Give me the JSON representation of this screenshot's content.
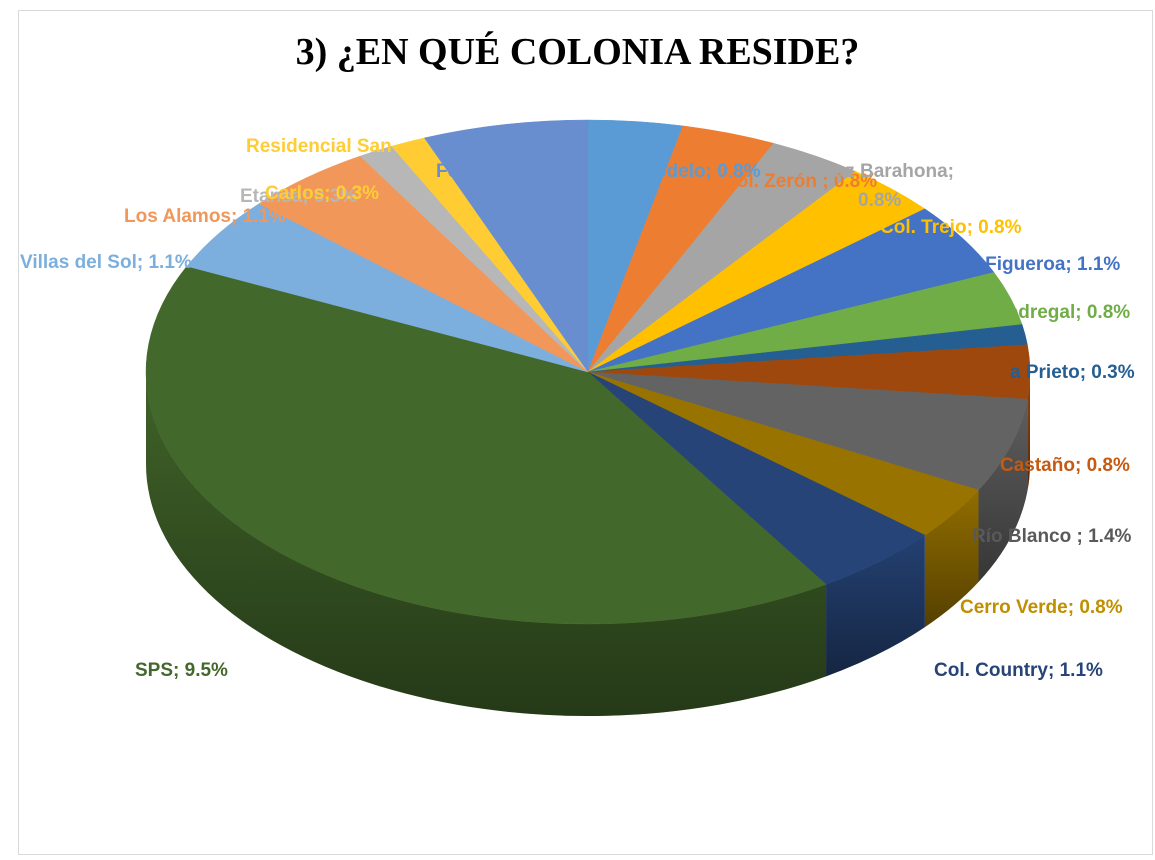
{
  "chart_data": {
    "type": "pie",
    "title": "3) ¿EN QUÉ COLONIA RESIDE?",
    "slices": [
      {
        "label": "Col. Modelo; 0.8%",
        "value": 0.8,
        "color": "#5b9bd5"
      },
      {
        "label": "Col. Zerón ; 0.8%",
        "value": 0.8,
        "color": "#ed7d31"
      },
      {
        "label": "Paz Barahona; 0.8%",
        "value": 0.8,
        "color": "#a5a5a5"
      },
      {
        "label": "Col. Trejo; 0.8%",
        "value": 0.8,
        "color": "#ffc000"
      },
      {
        "label": "Col. Figueroa; 1.1%",
        "value": 1.1,
        "color": "#4472c4"
      },
      {
        "label": "Pedregal; 0.8%",
        "value": 0.8,
        "color": "#70ad47"
      },
      {
        "label": "a Prieto; 0.3%",
        "value": 0.3,
        "color": "#255e91"
      },
      {
        "label": "",
        "value": 0.8,
        "color": "#9e480e"
      },
      {
        "label": "",
        "value": 1.4,
        "color": "#636363"
      },
      {
        "label": "",
        "value": 0.8,
        "color": "#997300"
      },
      {
        "label": "Col. Country; 1.1%",
        "value": 1.1,
        "color": "#264478"
      },
      {
        "label": "SPS; 9.5%",
        "value": 9.5,
        "color": "#43682b"
      },
      {
        "label": "Villas del Sol; 1.1%",
        "value": 1.1,
        "color": "#7cafdd"
      },
      {
        "label": "Los Alamos; 1.1%",
        "value": 1.1,
        "color": "#f1975a"
      },
      {
        "label": "Etansa; 0.3%",
        "value": 0.3,
        "color": "#b7b7b7"
      },
      {
        "label": "Residencial San Carlos; 0.3%",
        "value": 0.3,
        "color": "#ffcd33"
      },
      {
        "label": "Fesitran; 1.4%",
        "value": 1.4,
        "color": "#698ed0"
      }
    ],
    "outside_labels": [
      {
        "label": "Castaño; 0.8%",
        "color": "#c55a11"
      },
      {
        "label": "Río Blanco ; 1.4%",
        "color": "#595959"
      },
      {
        "label": "Cerro Verde; 0.8%",
        "color": "#bf8f00"
      }
    ]
  }
}
